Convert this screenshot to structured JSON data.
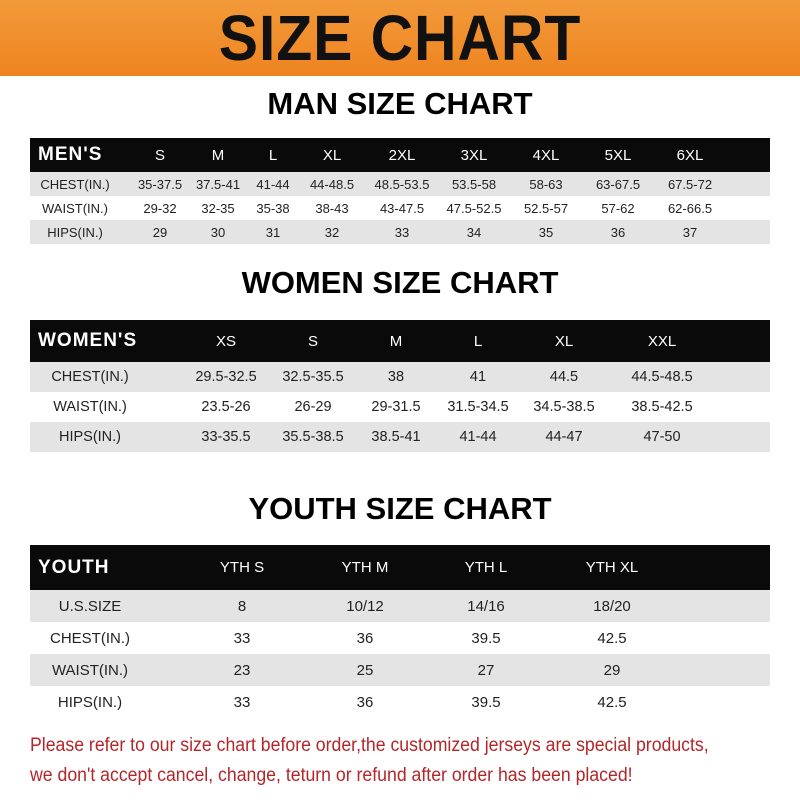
{
  "title": "SIZE CHART",
  "colors": {
    "banner": "#ee8420",
    "header_row": "#0a0a0a",
    "alt_row": "#e4e4e4",
    "notice": "#b3262a"
  },
  "men": {
    "title": "MAN SIZE CHART",
    "headers": [
      "MEN'S",
      "S",
      "M",
      "L",
      "XL",
      "2XL",
      "3XL",
      "4XL",
      "5XL",
      "6XL"
    ],
    "rows": [
      [
        "CHEST(IN.)",
        "35-37.5",
        "37.5-41",
        "41-44",
        "44-48.5",
        "48.5-53.5",
        "53.5-58",
        "58-63",
        "63-67.5",
        "67.5-72"
      ],
      [
        "WAIST(IN.)",
        "29-32",
        "32-35",
        "35-38",
        "38-43",
        "43-47.5",
        "47.5-52.5",
        "52.5-57",
        "57-62",
        "62-66.5"
      ],
      [
        "HIPS(IN.)",
        "29",
        "30",
        "31",
        "32",
        "33",
        "34",
        "35",
        "36",
        "37"
      ]
    ]
  },
  "women": {
    "title": "WOMEN SIZE CHART",
    "headers": [
      "WOMEN'S",
      "XS",
      "S",
      "M",
      "L",
      "XL",
      "XXL"
    ],
    "rows": [
      [
        "CHEST(IN.)",
        "29.5-32.5",
        "32.5-35.5",
        "38",
        "41",
        "44.5",
        "44.5-48.5"
      ],
      [
        "WAIST(IN.)",
        "23.5-26",
        "26-29",
        "29-31.5",
        "31.5-34.5",
        "34.5-38.5",
        "38.5-42.5"
      ],
      [
        "HIPS(IN.)",
        "33-35.5",
        "35.5-38.5",
        "38.5-41",
        "41-44",
        "44-47",
        "47-50"
      ]
    ]
  },
  "youth": {
    "title": "YOUTH SIZE CHART",
    "headers": [
      "YOUTH",
      "YTH S",
      "YTH M",
      "YTH L",
      "YTH XL"
    ],
    "rows": [
      [
        "U.S.SIZE",
        "8",
        "10/12",
        "14/16",
        "18/20"
      ],
      [
        "CHEST(IN.)",
        "33",
        "36",
        "39.5",
        "42.5"
      ],
      [
        "WAIST(IN.)",
        "23",
        "25",
        "27",
        "29"
      ],
      [
        "HIPS(IN.)",
        "33",
        "36",
        "39.5",
        "42.5"
      ]
    ]
  },
  "notice": [
    "Please refer to our size chart before order,the customized jerseys are special products,",
    "we don't accept cancel, change, teturn or refund after order has been placed!"
  ]
}
